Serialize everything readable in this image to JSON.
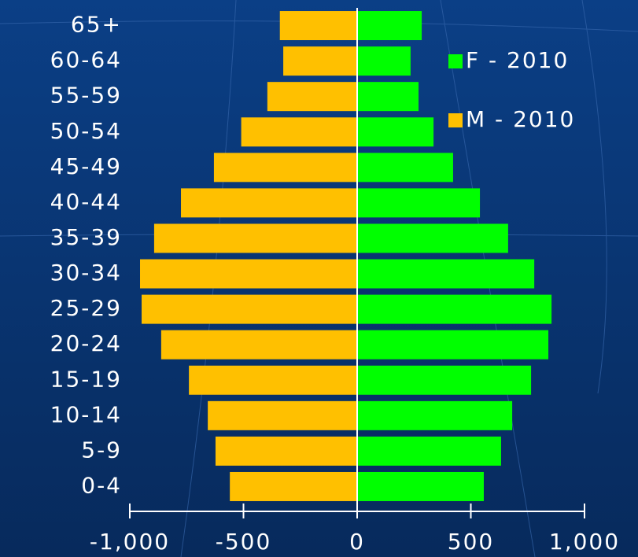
{
  "chart_data": {
    "type": "bar",
    "orientation": "horizontal",
    "stacked": true,
    "categories": [
      "0-4",
      "5-9",
      "10-14",
      "15-19",
      "20-24",
      "25-29",
      "30-34",
      "35-39",
      "40-44",
      "45-49",
      "50-54",
      "55-59",
      "60-64",
      "65+"
    ],
    "series": [
      {
        "name": "F - 2010",
        "color": "#00ff00",
        "values": [
          557,
          633,
          682,
          765,
          841,
          855,
          779,
          664,
          540,
          422,
          336,
          270,
          235,
          284
        ]
      },
      {
        "name": "M - 2010",
        "color": "#ffc000",
        "values": [
          -560,
          -623,
          -657,
          -740,
          -862,
          -948,
          -955,
          -893,
          -775,
          -630,
          -510,
          -395,
          -325,
          -340
        ]
      }
    ],
    "xlim": [
      -1000,
      1000
    ],
    "xticks": [
      {
        "value": -1000,
        "label": "-1,000"
      },
      -500,
      0,
      500,
      {
        "value": 1000,
        "label": "1,000"
      }
    ],
    "legend": "upper right"
  }
}
